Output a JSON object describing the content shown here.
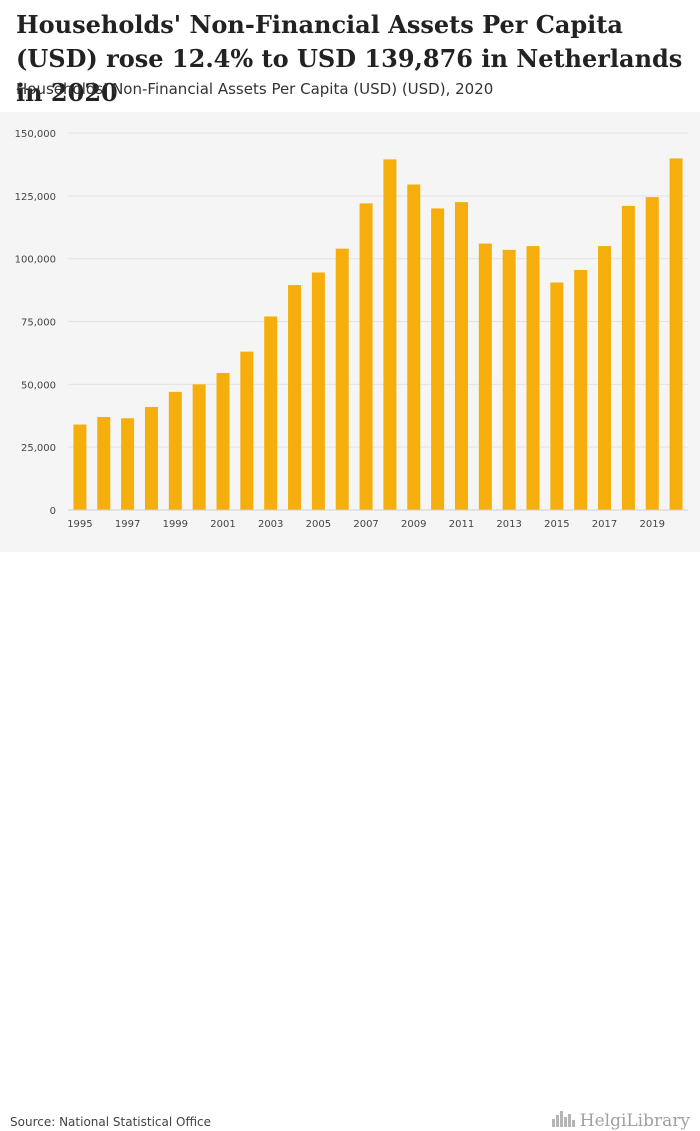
{
  "header": {
    "title": "Households' Non-Financial Assets Per Capita (USD) rose 12.4% to USD 139,876 in Netherlands in 2020",
    "subtitle": "Households' Non-Financial Assets Per Capita (USD) (USD), 2020"
  },
  "footer": {
    "source": "Source: National Statistical Office",
    "brand": "HelgiLibrary"
  },
  "icons": {
    "brand": "city-skyline-icon"
  },
  "colors": {
    "bar": "#f5ae0b",
    "plot_background": "#f5f5f5",
    "gridline": "#e3e3e3",
    "axis_text": "#444444"
  },
  "chart_data": {
    "type": "bar",
    "title": "Households' Non-Financial Assets Per Capita (USD) rose 12.4% to USD 139,876 in Netherlands in 2020",
    "xlabel": "",
    "ylabel": "",
    "ylim": [
      0,
      150000
    ],
    "yticks": [
      0,
      25000,
      50000,
      75000,
      100000,
      125000,
      150000
    ],
    "ytick_labels": [
      "0",
      "25,000",
      "50,000",
      "75,000",
      "100,000",
      "125,000",
      "150,000"
    ],
    "grid": true,
    "legend": "none",
    "categories": [
      "1995",
      "1996",
      "1997",
      "1998",
      "1999",
      "2000",
      "2001",
      "2002",
      "2003",
      "2004",
      "2005",
      "2006",
      "2007",
      "2008",
      "2009",
      "2010",
      "2011",
      "2012",
      "2013",
      "2014",
      "2015",
      "2016",
      "2017",
      "2018",
      "2019",
      "2020"
    ],
    "xtick_labels": [
      "1995",
      "",
      "1997",
      "",
      "1999",
      "",
      "2001",
      "",
      "2003",
      "",
      "2005",
      "",
      "2007",
      "",
      "2009",
      "",
      "2011",
      "",
      "2013",
      "",
      "2015",
      "",
      "2017",
      "",
      "2019",
      ""
    ],
    "series": [
      {
        "name": "Households' Non-Financial Assets Per Capita (USD)",
        "values": [
          34000,
          37000,
          36500,
          41000,
          47000,
          50000,
          54500,
          63000,
          77000,
          89500,
          94500,
          104000,
          122000,
          139500,
          129500,
          120000,
          122500,
          106000,
          103500,
          105000,
          90500,
          95500,
          105000,
          121000,
          124500,
          139876
        ]
      }
    ]
  }
}
